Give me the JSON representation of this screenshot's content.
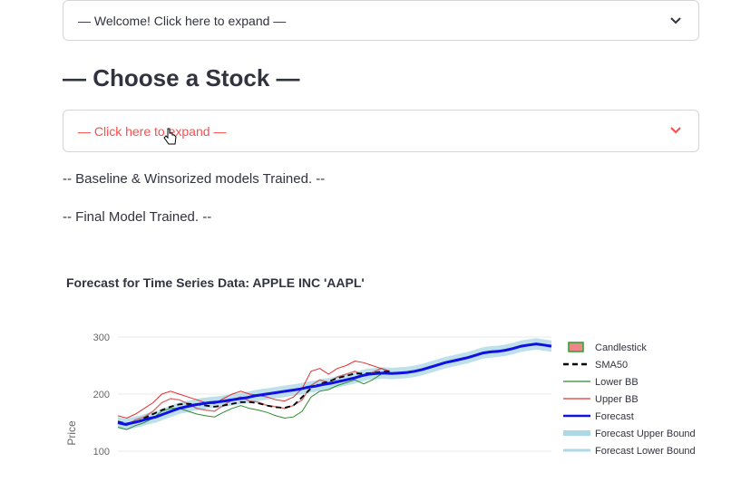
{
  "welcome_expander": {
    "label": "— Welcome! Click here to expand —",
    "icon": "chevron-down-icon"
  },
  "page_heading": "— Choose a Stock —",
  "stock_expander": {
    "label": "— Click here to expand —",
    "icon": "chevron-down-icon",
    "color": "#ff4b4b"
  },
  "messages": [
    "-- Baseline & Winsorized models Trained. --",
    "-- Final Model Trained. --"
  ],
  "chart_title": "Forecast for Time Series Data: APPLE INC 'AAPL'",
  "chart_data": {
    "type": "line",
    "title": "Forecast for Time Series Data: APPLE INC 'AAPL'",
    "ylabel": "Price",
    "xlabel": "",
    "y_ticks": [
      100,
      200,
      300
    ],
    "ylim": [
      100,
      300
    ],
    "grid": true,
    "legend_position": "right",
    "series": [
      {
        "name": "Candlestick",
        "color": "#2ca02c"
      },
      {
        "name": "SMA50",
        "color": "#000000",
        "dash": true
      },
      {
        "name": "Lower BB",
        "color": "#2e8b2e"
      },
      {
        "name": "Upper BB",
        "color": "#e03030"
      },
      {
        "name": "Forecast",
        "color": "#1010e0",
        "values": [
          150,
          147,
          150,
          153,
          157,
          160,
          165,
          170,
          175,
          178,
          181,
          183,
          185,
          186,
          188,
          190,
          192,
          194,
          197,
          199,
          201,
          203,
          205,
          207,
          209,
          212,
          214,
          217,
          219,
          222,
          225,
          228,
          232,
          235,
          236,
          237,
          236,
          237,
          238,
          240,
          243,
          247,
          251,
          255,
          258,
          261,
          264,
          268,
          272,
          274,
          275,
          277,
          280,
          284,
          286,
          288,
          286,
          284
        ]
      },
      {
        "name": "Forecast Upper Bound",
        "color": "#add8e6"
      },
      {
        "name": "Forecast Lower Bound",
        "color": "#add8e6"
      }
    ],
    "history": {
      "close": [
        152,
        145,
        155,
        160,
        170,
        185,
        192,
        190,
        183,
        175,
        172,
        170,
        180,
        190,
        195,
        188,
        186,
        180,
        178,
        175,
        180,
        190,
        215,
        225,
        220,
        230,
        235,
        240,
        232,
        238,
        245,
        240
      ],
      "sma50": [
        152,
        148,
        150,
        158,
        165,
        172,
        178,
        182,
        183,
        182,
        180,
        178,
        180,
        183,
        186,
        186,
        184,
        180,
        177,
        176,
        180,
        195,
        210,
        218,
        222,
        228,
        232,
        236,
        236,
        237,
        239,
        240
      ],
      "upper": [
        162,
        158,
        165,
        175,
        185,
        200,
        205,
        200,
        195,
        190,
        185,
        183,
        192,
        200,
        205,
        200,
        198,
        195,
        190,
        188,
        195,
        210,
        240,
        245,
        235,
        245,
        250,
        258,
        255,
        250,
        245,
        240
      ],
      "lower": [
        142,
        138,
        145,
        150,
        158,
        170,
        175,
        175,
        170,
        165,
        162,
        160,
        168,
        175,
        180,
        175,
        172,
        168,
        162,
        158,
        160,
        170,
        195,
        205,
        208,
        215,
        220,
        225,
        218,
        225,
        235,
        238
      ]
    }
  }
}
